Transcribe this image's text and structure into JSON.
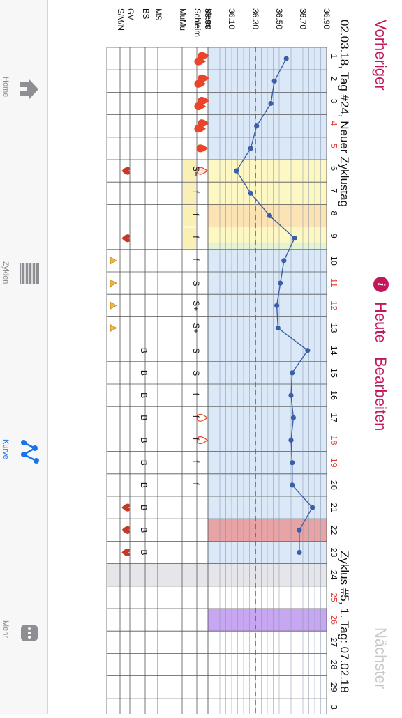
{
  "nav": {
    "prev_label": "Vorheriger",
    "today_label": "Heute",
    "edit_label": "Bearbeiten",
    "next_label": "Nächster",
    "info_icon": "info-icon"
  },
  "tabs": [
    {
      "label": "Home",
      "icon": "home-icon",
      "active": false
    },
    {
      "label": "Zyklen",
      "icon": "list-icon",
      "active": false
    },
    {
      "label": "Kurve",
      "icon": "curve-icon",
      "active": true
    },
    {
      "label": "Mehr",
      "icon": "more-icon",
      "active": false
    }
  ],
  "header": {
    "left": "02.03.18, Tag #24, Neuer Zyklustag",
    "right": "Zyklus #5, 1. Tag: 07.02.18"
  },
  "colors": {
    "accent": "#c2185b",
    "blue_zone": "#dbe8f8",
    "yellow_zone": "#fdf7c3",
    "orange_zone": "#fbe3b3",
    "green_zone": "#e4f3d4",
    "red_zone": "#e8a4a4",
    "purple_zone": "#c8a7f2",
    "grey_zone": "#e6e6ea",
    "line": "#3b5ea8",
    "coverline": "#3b5ea8"
  },
  "row_labels": [
    "Mens",
    "Schleim",
    "MuMu",
    "MS",
    "BS",
    "GV",
    "S/M/N"
  ],
  "temp_ticks": [
    "36.90",
    "36.70",
    "36.50",
    "36.30",
    "36.10",
    "35.90"
  ],
  "days": [
    {
      "d": "1",
      "red": false,
      "mens": "drops",
      "schleim": "",
      "bs": "",
      "gv": false,
      "smn": false,
      "zone": "blue"
    },
    {
      "d": "2",
      "red": false,
      "mens": "drops",
      "schleim": "",
      "bs": "",
      "gv": false,
      "smn": false,
      "zone": "blue"
    },
    {
      "d": "3",
      "red": false,
      "mens": "drops",
      "schleim": "",
      "bs": "",
      "gv": false,
      "smn": false,
      "zone": "blue"
    },
    {
      "d": "4",
      "red": true,
      "mens": "drops",
      "schleim": "",
      "bs": "",
      "gv": false,
      "smn": false,
      "zone": "blue"
    },
    {
      "d": "5",
      "red": true,
      "mens": "drop",
      "schleim": "",
      "bs": "",
      "gv": false,
      "smn": false,
      "zone": "blue"
    },
    {
      "d": "6",
      "red": false,
      "mens": "drop-half",
      "schleim": "S+",
      "bs": "",
      "gv": true,
      "smn": false,
      "zone": "yellow"
    },
    {
      "d": "7",
      "red": false,
      "mens": "",
      "schleim": "f",
      "bs": "",
      "gv": false,
      "smn": false,
      "zone": "yellow"
    },
    {
      "d": "8",
      "red": false,
      "mens": "",
      "schleim": "f",
      "bs": "",
      "gv": false,
      "smn": false,
      "zone": "orange"
    },
    {
      "d": "9",
      "red": false,
      "mens": "",
      "schleim": "f",
      "bs": "",
      "gv": true,
      "smn": false,
      "zone": "yellow-green"
    },
    {
      "d": "10",
      "red": false,
      "mens": "",
      "schleim": "f",
      "bs": "",
      "gv": false,
      "smn": true,
      "zone": "blue"
    },
    {
      "d": "11",
      "red": true,
      "mens": "",
      "schleim": "S",
      "bs": "",
      "gv": false,
      "smn": true,
      "zone": "blue"
    },
    {
      "d": "12",
      "red": true,
      "mens": "",
      "schleim": "S+",
      "bs": "",
      "gv": false,
      "smn": true,
      "zone": "blue"
    },
    {
      "d": "13",
      "red": false,
      "mens": "",
      "schleim": "S+",
      "bs": "",
      "gv": false,
      "smn": true,
      "zone": "blue"
    },
    {
      "d": "14",
      "red": false,
      "mens": "",
      "schleim": "S",
      "bs": "B",
      "gv": false,
      "smn": false,
      "zone": "blue"
    },
    {
      "d": "15",
      "red": false,
      "mens": "",
      "schleim": "S",
      "bs": "B",
      "gv": false,
      "smn": false,
      "zone": "blue"
    },
    {
      "d": "16",
      "red": false,
      "mens": "",
      "schleim": "f",
      "bs": "B",
      "gv": false,
      "smn": false,
      "zone": "blue"
    },
    {
      "d": "17",
      "red": false,
      "mens": "outline",
      "schleim": "f",
      "bs": "B",
      "gv": false,
      "smn": false,
      "zone": "blue"
    },
    {
      "d": "18",
      "red": true,
      "mens": "outline",
      "schleim": "f",
      "bs": "B",
      "gv": false,
      "smn": false,
      "zone": "blue"
    },
    {
      "d": "19",
      "red": true,
      "mens": "",
      "schleim": "f",
      "bs": "B",
      "gv": false,
      "smn": false,
      "zone": "blue"
    },
    {
      "d": "20",
      "red": false,
      "mens": "",
      "schleim": "f",
      "bs": "B",
      "gv": false,
      "smn": false,
      "zone": "blue"
    },
    {
      "d": "21",
      "red": false,
      "mens": "",
      "schleim": "",
      "bs": "B",
      "gv": true,
      "smn": false,
      "zone": "blue"
    },
    {
      "d": "22",
      "red": false,
      "mens": "",
      "schleim": "",
      "bs": "B",
      "gv": true,
      "smn": false,
      "zone": "red"
    },
    {
      "d": "23",
      "red": false,
      "mens": "",
      "schleim": "",
      "bs": "B",
      "gv": true,
      "smn": false,
      "zone": "blue"
    },
    {
      "d": "24",
      "red": false,
      "mens": "",
      "schleim": "",
      "bs": "",
      "gv": false,
      "smn": false,
      "zone": "grey"
    },
    {
      "d": "25",
      "red": true,
      "mens": "",
      "schleim": "",
      "bs": "",
      "gv": false,
      "smn": false,
      "zone": "none"
    },
    {
      "d": "26",
      "red": true,
      "mens": "",
      "schleim": "",
      "bs": "",
      "gv": false,
      "smn": false,
      "zone": "purple"
    },
    {
      "d": "27",
      "red": false,
      "mens": "",
      "schleim": "",
      "bs": "",
      "gv": false,
      "smn": false,
      "zone": "none"
    },
    {
      "d": "28",
      "red": false,
      "mens": "",
      "schleim": "",
      "bs": "",
      "gv": false,
      "smn": false,
      "zone": "none"
    },
    {
      "d": "29",
      "red": false,
      "mens": "",
      "schleim": "",
      "bs": "",
      "gv": false,
      "smn": false,
      "zone": "none"
    },
    {
      "d": "3",
      "red": false,
      "mens": "",
      "schleim": "",
      "bs": "",
      "gv": false,
      "smn": false,
      "zone": "none"
    }
  ],
  "chart_data": {
    "type": "line",
    "x": [
      1,
      2,
      3,
      4,
      5,
      6,
      7,
      8,
      9,
      10,
      11,
      12,
      13,
      14,
      15,
      16,
      17,
      18,
      19,
      20,
      21,
      22,
      23
    ],
    "series": [
      {
        "values": [
          36.56,
          36.46,
          36.43,
          36.31,
          36.26,
          36.14,
          36.26,
          36.42,
          36.63,
          36.54,
          36.51,
          36.48,
          36.49,
          36.74,
          36.61,
          36.6,
          36.62,
          36.6,
          36.61,
          36.61,
          36.78,
          36.67,
          36.67
        ]
      }
    ],
    "coverline": 36.3,
    "ylim": [
      35.9,
      36.9
    ],
    "yticks": [
      35.9,
      36.1,
      36.3,
      36.5,
      36.7,
      36.9
    ],
    "grid": true
  }
}
